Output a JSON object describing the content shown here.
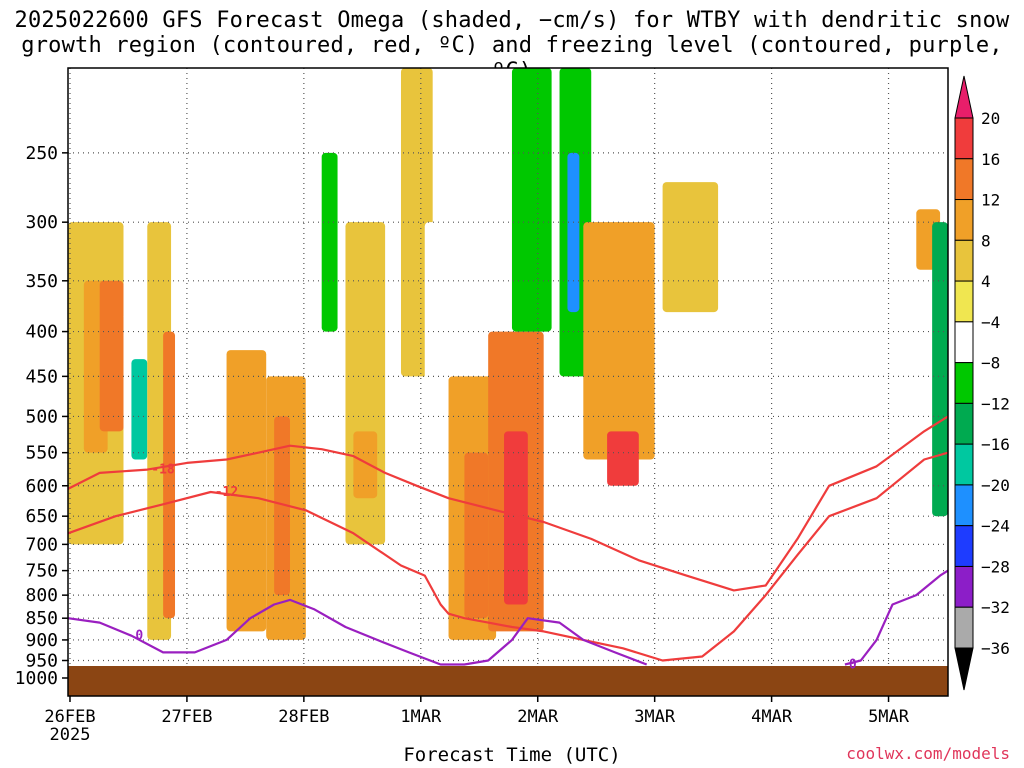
{
  "title": {
    "line1": "2025022600 GFS Forecast Omega (shaded, −cm/s) for WTBY with dendritic snow",
    "line2": "growth region (contoured, red, ºC) and freezing level (contoured, purple, ºC)"
  },
  "credit": "coolwx.com/models",
  "colors": {
    "ground": "#8b4513",
    "dgz_contour": "#ef3c3c",
    "freezing_contour": "#9a1fc0",
    "grid": "#555555"
  },
  "chart_data": {
    "type": "heatmap",
    "title": "2025022600 GFS Forecast Omega (shaded, −cm/s) for WTBY with dendritic snow growth region (contoured, red, ºC) and freezing level (contoured, purple, ºC)",
    "xlabel": "Forecast Time (UTC)",
    "ylabel": "",
    "y_scale": "log-pressure (inverted)",
    "y_ticks": [
      250,
      300,
      350,
      400,
      450,
      500,
      550,
      600,
      650,
      700,
      750,
      800,
      850,
      900,
      950,
      1000
    ],
    "ylim": [
      1000,
      200
    ],
    "x_ticks": [
      "26FEB",
      "27FEB",
      "28FEB",
      "1MAR",
      "2MAR",
      "3MAR",
      "4MAR",
      "5MAR"
    ],
    "x_year_label": "2025",
    "xlim_hours": [
      0,
      222
    ],
    "colorbar": {
      "labels": [
        "20",
        "16",
        "12",
        "8",
        "4",
        "−4",
        "−8",
        "−12",
        "−16",
        "−20",
        "−24",
        "−28",
        "−32",
        "−36"
      ],
      "colors": [
        "#e81e6a",
        "#f03c3c",
        "#f07828",
        "#f0a028",
        "#e8c43c",
        "#f0e650",
        "#ffffff",
        "#00c800",
        "#00aa50",
        "#00c8a0",
        "#1e90ff",
        "#1e3cff",
        "#8c1ec8",
        "#aaaaaa",
        "#000000"
      ]
    },
    "contours": {
      "dgz_minus18": {
        "label": "-18",
        "points": [
          [
            0,
            605
          ],
          [
            8,
            580
          ],
          [
            20,
            575
          ],
          [
            30,
            565
          ],
          [
            40,
            560
          ],
          [
            48,
            550
          ],
          [
            56,
            540
          ],
          [
            64,
            545
          ],
          [
            72,
            555
          ],
          [
            80,
            580
          ],
          [
            88,
            600
          ],
          [
            96,
            620
          ],
          [
            108,
            640
          ],
          [
            120,
            660
          ],
          [
            132,
            690
          ],
          [
            144,
            730
          ],
          [
            156,
            760
          ],
          [
            168,
            790
          ],
          [
            176,
            780
          ],
          [
            184,
            690
          ],
          [
            192,
            600
          ],
          [
            204,
            570
          ],
          [
            216,
            520
          ],
          [
            222,
            500
          ]
        ]
      },
      "dgz_minus12": {
        "label": "-12",
        "points": [
          [
            0,
            680
          ],
          [
            12,
            650
          ],
          [
            24,
            630
          ],
          [
            36,
            610
          ],
          [
            48,
            620
          ],
          [
            60,
            640
          ],
          [
            72,
            680
          ],
          [
            84,
            740
          ],
          [
            90,
            760
          ],
          [
            94,
            820
          ],
          [
            96,
            840
          ],
          [
            100,
            850
          ],
          [
            106,
            860
          ],
          [
            112,
            870
          ],
          [
            120,
            880
          ],
          [
            130,
            900
          ],
          [
            140,
            920
          ],
          [
            150,
            950
          ],
          [
            160,
            940
          ],
          [
            168,
            880
          ],
          [
            176,
            800
          ],
          [
            184,
            720
          ],
          [
            192,
            650
          ],
          [
            204,
            620
          ],
          [
            216,
            560
          ],
          [
            222,
            550
          ]
        ]
      },
      "freezing_0": {
        "label": "0",
        "points": [
          [
            0,
            850
          ],
          [
            8,
            860
          ],
          [
            16,
            890
          ],
          [
            24,
            930
          ],
          [
            32,
            930
          ],
          [
            40,
            900
          ],
          [
            46,
            850
          ],
          [
            52,
            820
          ],
          [
            56,
            810
          ],
          [
            62,
            830
          ],
          [
            70,
            870
          ],
          [
            78,
            900
          ],
          [
            86,
            930
          ],
          [
            94,
            960
          ],
          [
            100,
            960
          ],
          [
            106,
            950
          ],
          [
            112,
            900
          ],
          [
            116,
            850
          ],
          [
            124,
            860
          ],
          [
            130,
            900
          ],
          [
            138,
            930
          ],
          [
            146,
            960
          ]
        ]
      },
      "freezing_0_right": {
        "label": "0",
        "points": [
          [
            196,
            960
          ],
          [
            200,
            950
          ],
          [
            204,
            900
          ],
          [
            208,
            820
          ],
          [
            214,
            800
          ],
          [
            220,
            760
          ],
          [
            222,
            750
          ]
        ]
      }
    },
    "bands": [
      {
        "t0": 0,
        "t1": 14,
        "p0": 300,
        "p1": 700,
        "v": 6
      },
      {
        "t0": 4,
        "t1": 10,
        "p0": 350,
        "p1": 550,
        "v": 11
      },
      {
        "t0": 8,
        "t1": 14,
        "p0": 350,
        "p1": 520,
        "v": 14
      },
      {
        "t0": 14,
        "t1": 22,
        "p0": 380,
        "p1": 650,
        "v": -8
      },
      {
        "t0": 16,
        "t1": 20,
        "p0": 430,
        "p1": 560,
        "v": -18
      },
      {
        "t0": 20,
        "t1": 26,
        "p0": 300,
        "p1": 900,
        "v": 6
      },
      {
        "t0": 24,
        "t1": 27,
        "p0": 400,
        "p1": 850,
        "v": 12
      },
      {
        "t0": 32,
        "t1": 40,
        "p0": 250,
        "p1": 420,
        "v": -8
      },
      {
        "t0": 40,
        "t1": 50,
        "p0": 420,
        "p1": 880,
        "v": 9
      },
      {
        "t0": 50,
        "t1": 60,
        "p0": 450,
        "p1": 900,
        "v": 8
      },
      {
        "t0": 52,
        "t1": 56,
        "p0": 500,
        "p1": 800,
        "v": 13
      },
      {
        "t0": 60,
        "t1": 70,
        "p0": 200,
        "p1": 500,
        "v": -8
      },
      {
        "t0": 64,
        "t1": 68,
        "p0": 250,
        "p1": 400,
        "v": -12
      },
      {
        "t0": 70,
        "t1": 80,
        "p0": 300,
        "p1": 700,
        "v": 6
      },
      {
        "t0": 72,
        "t1": 78,
        "p0": 520,
        "p1": 620,
        "v": 10
      },
      {
        "t0": 84,
        "t1": 92,
        "p0": 200,
        "p1": 450,
        "v": 7
      },
      {
        "t0": 90,
        "t1": 96,
        "p0": 300,
        "p1": 600,
        "v": -8
      },
      {
        "t0": 96,
        "t1": 108,
        "p0": 450,
        "p1": 900,
        "v": 10
      },
      {
        "t0": 100,
        "t1": 106,
        "p0": 550,
        "p1": 850,
        "v": 15
      },
      {
        "t0": 106,
        "t1": 120,
        "p0": 400,
        "p1": 880,
        "v": 12
      },
      {
        "t0": 110,
        "t1": 116,
        "p0": 520,
        "p1": 820,
        "v": 19
      },
      {
        "t0": 112,
        "t1": 122,
        "p0": 200,
        "p1": 400,
        "v": -9
      },
      {
        "t0": 124,
        "t1": 132,
        "p0": 200,
        "p1": 450,
        "v": -12
      },
      {
        "t0": 126,
        "t1": 129,
        "p0": 250,
        "p1": 380,
        "v": -22
      },
      {
        "t0": 130,
        "t1": 148,
        "p0": 300,
        "p1": 560,
        "v": 8
      },
      {
        "t0": 136,
        "t1": 144,
        "p0": 520,
        "p1": 600,
        "v": 17
      },
      {
        "t0": 132,
        "t1": 150,
        "p0": 640,
        "p1": 820,
        "v": -8
      },
      {
        "t0": 150,
        "t1": 164,
        "p0": 270,
        "p1": 380,
        "v": 6
      },
      {
        "t0": 156,
        "t1": 170,
        "p0": 400,
        "p1": 800,
        "v": -7
      },
      {
        "t0": 196,
        "t1": 210,
        "p0": 500,
        "p1": 800,
        "v": -8
      },
      {
        "t0": 214,
        "t1": 220,
        "p0": 290,
        "p1": 340,
        "v": 10
      },
      {
        "t0": 218,
        "t1": 222,
        "p0": 300,
        "p1": 650,
        "v": -14
      }
    ]
  }
}
